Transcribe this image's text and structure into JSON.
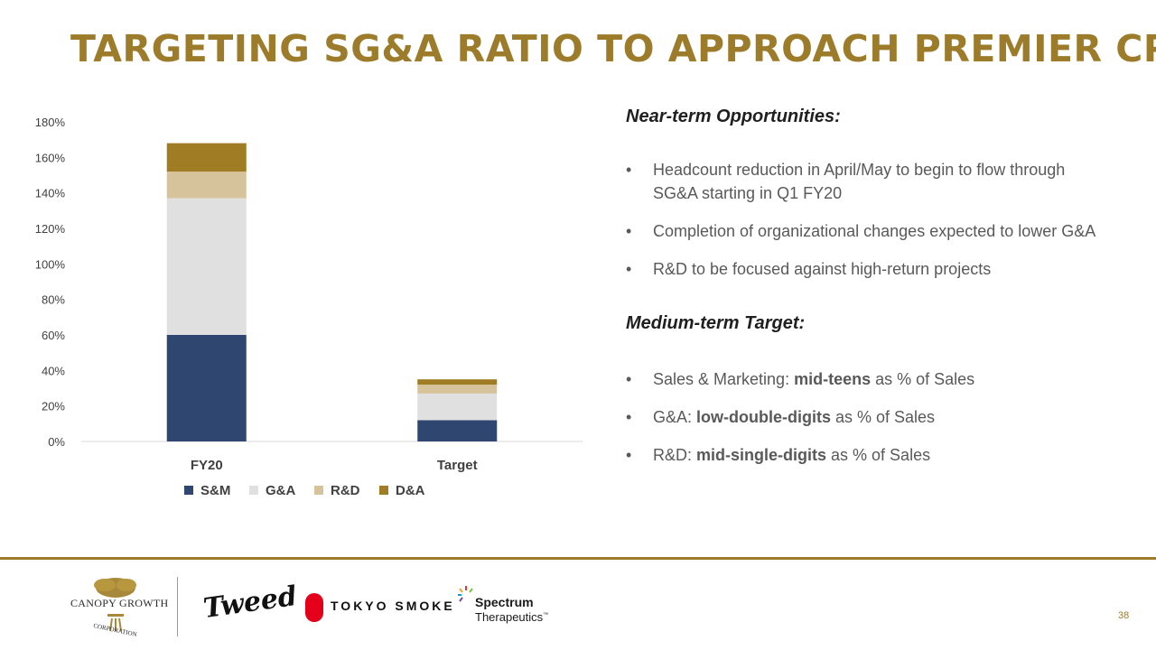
{
  "title": "TARGETING SG&A RATIO TO APPROACH PREMIER CPG",
  "colors": {
    "gold": "#9c7c2a",
    "sm": "#2e4670",
    "ga": "#e0e0e0",
    "rd": "#d7c39b",
    "da": "#a07c24"
  },
  "chart_data": {
    "type": "bar",
    "stacked": true,
    "categories": [
      "FY20",
      "Target"
    ],
    "series": [
      {
        "name": "S&M",
        "values": [
          60,
          12
        ]
      },
      {
        "name": "G&A",
        "values": [
          77,
          15
        ]
      },
      {
        "name": "R&D",
        "values": [
          15,
          5
        ]
      },
      {
        "name": "D&A",
        "values": [
          16,
          3
        ]
      }
    ],
    "yticks": [
      "0%",
      "20%",
      "40%",
      "60%",
      "80%",
      "100%",
      "120%",
      "140%",
      "160%",
      "180%"
    ],
    "ylim": [
      0,
      180
    ],
    "legend": [
      "S&M",
      "G&A",
      "R&D",
      "D&A"
    ],
    "legend_position": "bottom"
  },
  "near_term": {
    "heading": "Near-term Opportunities:",
    "bullet": "•",
    "items": [
      "Headcount reduction in April/May to begin to flow through SG&A starting in Q1 FY20",
      "Completion of organizational changes expected to lower G&A",
      "R&D to be focused against high-return projects"
    ]
  },
  "medium_term": {
    "heading": "Medium-term Target:",
    "items": [
      {
        "prefix": "Sales & Marketing: ",
        "bold": "mid-teens",
        "suffix": " as % of Sales"
      },
      {
        "prefix": "G&A: ",
        "bold": "low-double-digits",
        "suffix": " as % of Sales"
      },
      {
        "prefix": "R&D: ",
        "bold": "mid-single-digits",
        "suffix": " as % of Sales"
      }
    ]
  },
  "footer": {
    "canopy": "CANOPY GROWTH",
    "canopy_sub": "CORPORATION",
    "tweed": "Tweed",
    "tokyo": "TOKYO SMOKE",
    "spectrum_line1": "Spectrum",
    "spectrum_line2": "Therapeutics",
    "spectrum_tm": "™",
    "page": "38"
  }
}
